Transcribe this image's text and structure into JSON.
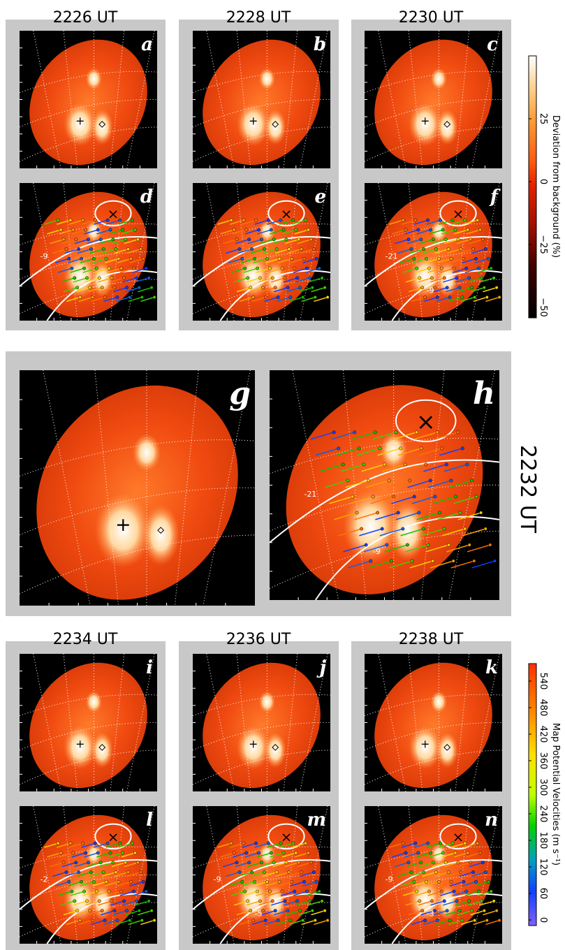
{
  "top_row": {
    "times": [
      "2226 UT",
      "2228 UT",
      "2230 UT"
    ],
    "panel_letters": [
      "a",
      "b",
      "c",
      "d",
      "e",
      "f"
    ]
  },
  "middle_row": {
    "time": "2232 UT",
    "panel_letters": [
      "g",
      "h"
    ]
  },
  "bottom_row": {
    "times": [
      "2234 UT",
      "2236 UT",
      "2238 UT"
    ],
    "panel_letters": [
      "i",
      "j",
      "k",
      "l",
      "m",
      "n"
    ]
  },
  "colorbar_deviation": {
    "label": "Deviation from background (%)",
    "ticks": [
      "25",
      "0",
      "−25",
      "−50"
    ]
  },
  "colorbar_velocity": {
    "label": "Map Potential Velocities (m s⁻¹)",
    "ticks": [
      "540",
      "480",
      "420",
      "360",
      "300",
      "240",
      "180",
      "120",
      "60",
      "0"
    ]
  },
  "contour_labels": {
    "d": [
      "-9"
    ],
    "f": [
      "-21",
      "-9"
    ],
    "h": [
      "-21",
      "-9"
    ],
    "l": [
      "-2"
    ],
    "m": [
      "-9",
      "-5"
    ],
    "n": [
      "-9",
      "-3"
    ]
  }
}
